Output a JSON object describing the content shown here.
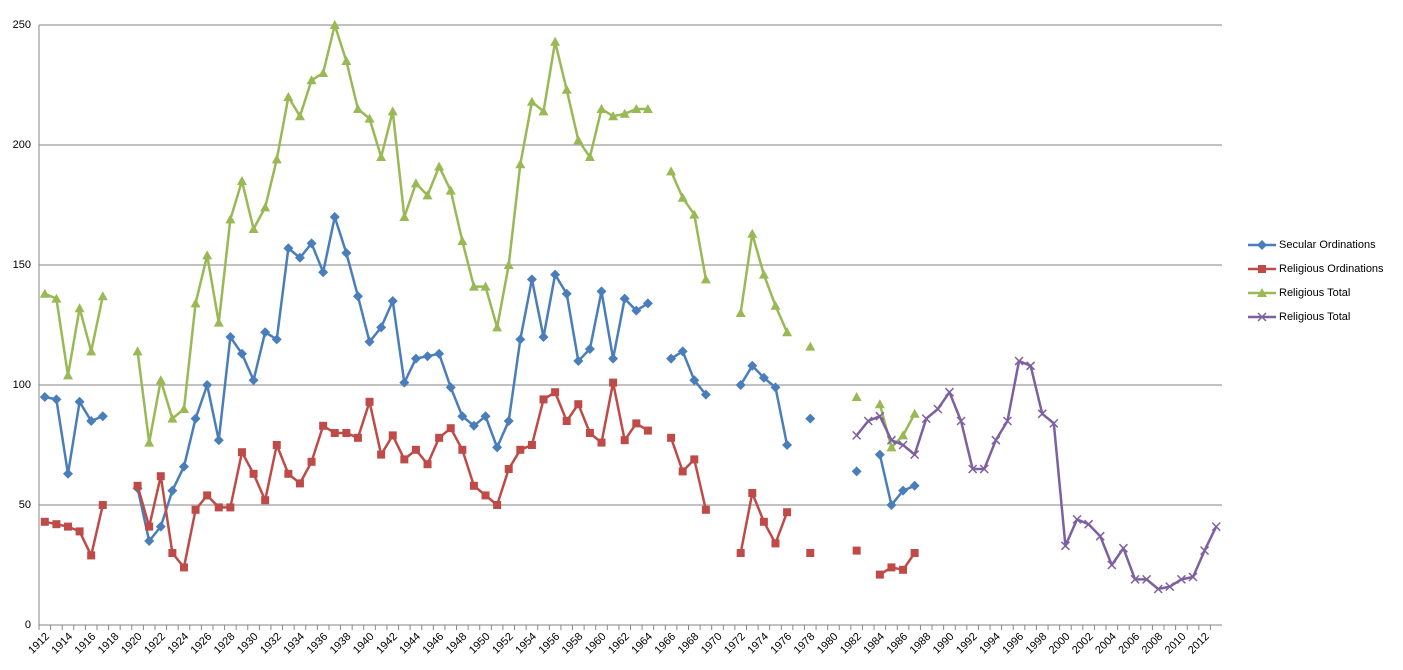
{
  "chart_data": {
    "type": "line",
    "categories": [
      "1912",
      null,
      "1914",
      null,
      "1916",
      null,
      "1918",
      null,
      "1920",
      null,
      "1922",
      null,
      "1924",
      null,
      "1926",
      null,
      "1928",
      null,
      "1930",
      null,
      "1932",
      null,
      "1934",
      null,
      "1936",
      null,
      "1938",
      null,
      "1940",
      null,
      "1942",
      null,
      "1944",
      null,
      "1946",
      null,
      "1948",
      null,
      "1950",
      null,
      "1952",
      null,
      "1954",
      null,
      "1956",
      null,
      "1958",
      null,
      "1960",
      null,
      "1962",
      null,
      "1964",
      null,
      "1966",
      null,
      "1968",
      null,
      "1970",
      null,
      "1972",
      null,
      "1974",
      null,
      "1976",
      null,
      "1978",
      null,
      "1980",
      null,
      "1982",
      null,
      "1984",
      null,
      "1986",
      null,
      "1988",
      null,
      "1990",
      null,
      "1992",
      null,
      "1994",
      null,
      "1996",
      null,
      "1998",
      null,
      "2000",
      null,
      "2002",
      null,
      "2004",
      null,
      "2006",
      null,
      "2008",
      null,
      "2010",
      null,
      "2012",
      null
    ],
    "series": [
      {
        "name": "Secular Ordinations",
        "color": "#4a7ebb",
        "marker": "diamond",
        "values": [
          95,
          94,
          63,
          93,
          85,
          87,
          null,
          null,
          57,
          35,
          41,
          56,
          66,
          86,
          100,
          77,
          120,
          113,
          102,
          122,
          119,
          157,
          153,
          159,
          147,
          170,
          155,
          137,
          118,
          124,
          135,
          101,
          111,
          112,
          113,
          99,
          87,
          83,
          87,
          74,
          85,
          119,
          144,
          120,
          146,
          138,
          110,
          115,
          139,
          111,
          136,
          131,
          134,
          null,
          111,
          114,
          102,
          96,
          null,
          null,
          100,
          108,
          103,
          99,
          75,
          null,
          86,
          null,
          null,
          null,
          64,
          null,
          71,
          50,
          56,
          58,
          null,
          null,
          null,
          null,
          null,
          null,
          null,
          null,
          null,
          null,
          null,
          null,
          null,
          null,
          null,
          null,
          null,
          null,
          null,
          null,
          null,
          null,
          null,
          null,
          null,
          null
        ]
      },
      {
        "name": "Religious Ordinations",
        "color": "#be4b48",
        "marker": "square",
        "values": [
          43,
          42,
          41,
          39,
          29,
          50,
          null,
          null,
          58,
          41,
          62,
          30,
          24,
          48,
          54,
          49,
          49,
          72,
          63,
          52,
          75,
          63,
          59,
          68,
          83,
          80,
          80,
          78,
          93,
          71,
          79,
          69,
          73,
          67,
          78,
          82,
          73,
          58,
          54,
          50,
          65,
          73,
          75,
          94,
          97,
          85,
          92,
          80,
          76,
          101,
          77,
          84,
          81,
          null,
          78,
          64,
          69,
          48,
          null,
          null,
          30,
          55,
          43,
          34,
          47,
          null,
          30,
          null,
          null,
          null,
          31,
          null,
          21,
          24,
          23,
          30,
          null,
          null,
          null,
          null,
          null,
          null,
          null,
          null,
          null,
          null,
          null,
          null,
          null,
          null,
          null,
          null,
          null,
          null,
          null,
          null,
          null,
          null,
          null,
          null,
          null,
          null
        ]
      },
      {
        "name": "Religious Total",
        "color": "#98b954",
        "marker": "triangle",
        "values": [
          138,
          136,
          104,
          132,
          114,
          137,
          null,
          null,
          114,
          76,
          102,
          86,
          90,
          134,
          154,
          126,
          169,
          185,
          165,
          174,
          194,
          220,
          212,
          227,
          230,
          250,
          235,
          215,
          211,
          195,
          214,
          170,
          184,
          179,
          191,
          181,
          160,
          141,
          141,
          124,
          150,
          192,
          218,
          214,
          243,
          223,
          202,
          195,
          215,
          212,
          213,
          215,
          215,
          null,
          189,
          178,
          171,
          144,
          null,
          null,
          130,
          163,
          146,
          133,
          122,
          null,
          116,
          null,
          null,
          null,
          95,
          null,
          92,
          74,
          79,
          88,
          null,
          null,
          null,
          null,
          null,
          null,
          null,
          null,
          null,
          null,
          null,
          null,
          null,
          null,
          null,
          null,
          null,
          null,
          null,
          null,
          null,
          null,
          null,
          null,
          null,
          null
        ]
      },
      {
        "name": "Religious Total",
        "color": "#7d60a0",
        "marker": "x",
        "values": [
          null,
          null,
          null,
          null,
          null,
          null,
          null,
          null,
          null,
          null,
          null,
          null,
          null,
          null,
          null,
          null,
          null,
          null,
          null,
          null,
          null,
          null,
          null,
          null,
          null,
          null,
          null,
          null,
          null,
          null,
          null,
          null,
          null,
          null,
          null,
          null,
          null,
          null,
          null,
          null,
          null,
          null,
          null,
          null,
          null,
          null,
          null,
          null,
          null,
          null,
          null,
          null,
          null,
          null,
          null,
          null,
          null,
          null,
          null,
          null,
          null,
          null,
          null,
          null,
          null,
          null,
          null,
          null,
          null,
          null,
          79,
          85,
          87,
          77,
          75,
          71,
          86,
          90,
          97,
          85,
          65,
          65,
          77,
          85,
          110,
          108,
          88,
          84,
          33,
          44,
          42,
          37,
          25,
          32,
          19,
          19,
          15,
          16,
          19,
          20,
          31,
          41
        ]
      }
    ],
    "ylim": [
      0,
      250
    ],
    "yticks": [
      0,
      50,
      100,
      150,
      200,
      250
    ],
    "grid": true,
    "legend": "right"
  }
}
